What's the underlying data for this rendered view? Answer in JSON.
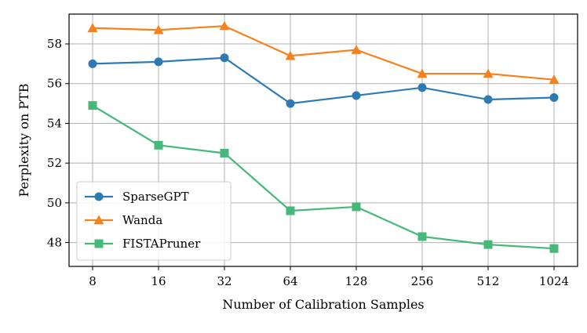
{
  "chart_data": {
    "type": "line",
    "title": "",
    "xlabel": "Number of Calibration Samples",
    "ylabel": "Perplexity on PTB",
    "categories": [
      "8",
      "16",
      "32",
      "64",
      "128",
      "256",
      "512",
      "1024"
    ],
    "ylim": [
      46.8,
      59.5
    ],
    "yticks": [
      48,
      50,
      52,
      54,
      56,
      58
    ],
    "grid": true,
    "legend_position": "lower-left",
    "series": [
      {
        "name": "SparseGPT",
        "color": "#2e7bb4",
        "marker": "circle",
        "values": [
          57.0,
          57.1,
          57.3,
          55.0,
          55.4,
          55.8,
          55.2,
          55.3
        ]
      },
      {
        "name": "Wanda",
        "color": "#f5821f",
        "marker": "triangle",
        "values": [
          58.8,
          58.7,
          58.9,
          57.4,
          57.7,
          56.5,
          56.5,
          56.2
        ]
      },
      {
        "name": "FISTAPruner",
        "color": "#45b87a",
        "marker": "square",
        "values": [
          54.9,
          52.9,
          52.5,
          49.6,
          49.8,
          48.3,
          47.9,
          47.7
        ]
      }
    ]
  }
}
